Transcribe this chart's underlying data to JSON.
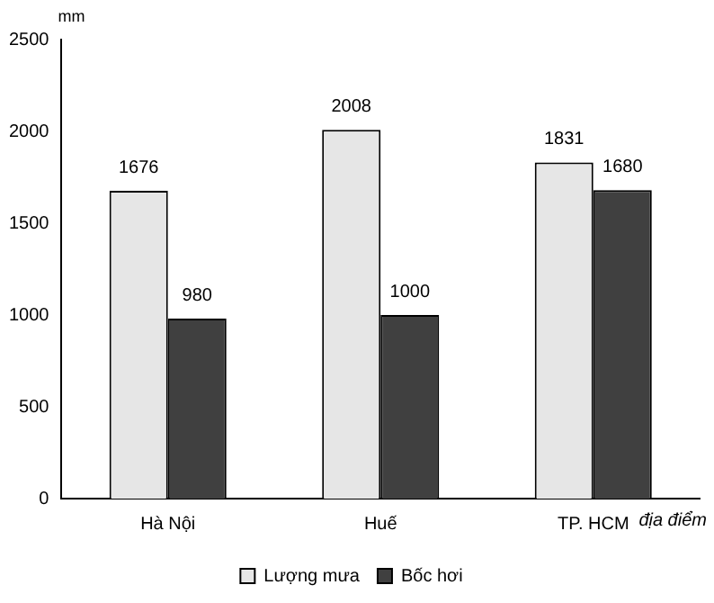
{
  "chart_data": {
    "type": "bar",
    "ylabel": "mm",
    "xlabel": "địa điểm",
    "categories": [
      "Hà Nội",
      "Huế",
      "TP. HCM"
    ],
    "series": [
      {
        "name": "Lượng mưa",
        "color": "#e6e6e6",
        "values": [
          1676,
          2008,
          1831
        ]
      },
      {
        "name": "Bốc hơi",
        "color": "#404040",
        "values": [
          980,
          1000,
          1680
        ]
      }
    ],
    "ylim": [
      0,
      2500
    ],
    "yticks": [
      0,
      500,
      1000,
      1500,
      2000,
      2500
    ],
    "grid": false,
    "legend": "bottom",
    "data_labels": true
  }
}
